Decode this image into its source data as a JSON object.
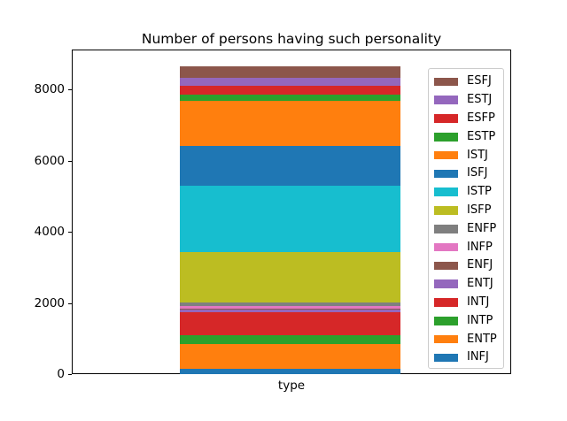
{
  "chart_data": {
    "type": "bar",
    "stacked": true,
    "title": "Number of persons having such personality",
    "xlabel": "type",
    "ylabel": "",
    "ylim": [
      0,
      9130
    ],
    "yticks": [
      0,
      2000,
      4000,
      6000,
      8000
    ],
    "grid": false,
    "legend_position": "inside axes, upper right",
    "note": "single stacked bar; segment values estimated from y-axis scale, total ~8665",
    "series": [
      {
        "name": "INFJ",
        "value": 160,
        "color": "#1f77b4"
      },
      {
        "name": "ENTP",
        "value": 680,
        "color": "#ff7f0e"
      },
      {
        "name": "INTP",
        "value": 250,
        "color": "#2ca02c"
      },
      {
        "name": "INTJ",
        "value": 650,
        "color": "#d62728"
      },
      {
        "name": "ENTJ",
        "value": 85,
        "color": "#9467bd"
      },
      {
        "name": "ENFJ",
        "value": 25,
        "color": "#8c564b"
      },
      {
        "name": "INFP",
        "value": 60,
        "color": "#e377c2"
      },
      {
        "name": "ENFP",
        "value": 110,
        "color": "#7f7f7f"
      },
      {
        "name": "ISFP",
        "value": 1410,
        "color": "#bcbd22"
      },
      {
        "name": "ISTP",
        "value": 1870,
        "color": "#17becf"
      },
      {
        "name": "ISFJ",
        "value": 1120,
        "color": "#1f77b4"
      },
      {
        "name": "ISTJ",
        "value": 1260,
        "color": "#ff7f0e"
      },
      {
        "name": "ESTP",
        "value": 185,
        "color": "#2ca02c"
      },
      {
        "name": "ESFP",
        "value": 250,
        "color": "#d62728"
      },
      {
        "name": "ESTJ",
        "value": 225,
        "color": "#9467bd"
      },
      {
        "name": "ESFJ",
        "value": 325,
        "color": "#8c564b"
      }
    ],
    "legend_order_top_to_bottom": [
      "ESFJ",
      "ESTJ",
      "ESFP",
      "ESTP",
      "ISTJ",
      "ISFJ",
      "ISTP",
      "ISFP",
      "ENFP",
      "INFP",
      "ENFJ",
      "ENTJ",
      "INTJ",
      "INTP",
      "ENTP",
      "INFJ"
    ]
  }
}
